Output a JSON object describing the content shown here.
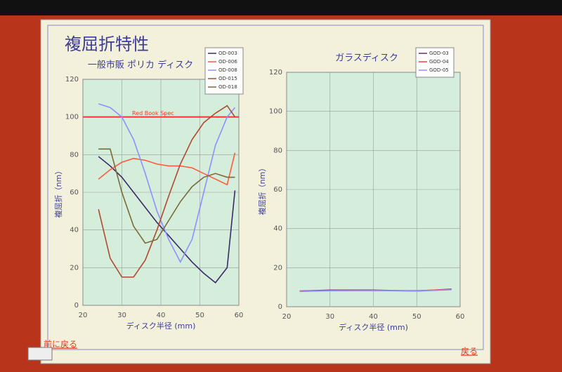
{
  "slide": {
    "title": "複屈折特性",
    "prev_link": "前に戻る",
    "back_link": "戻る"
  },
  "chart_data": [
    {
      "type": "line",
      "title": "一般市販 ポリカ ディスク",
      "x_label": "ディスク半径 (mm)",
      "y_label": "複屈折（nm）",
      "x": [
        24,
        27,
        30,
        33,
        36,
        39,
        42,
        45,
        48,
        51,
        54,
        57,
        59
      ],
      "series": [
        {
          "name": "OD-003",
          "color": "#3a2a6a",
          "values": [
            79,
            74,
            68,
            60,
            52,
            44,
            37,
            30,
            23,
            17,
            12,
            20,
            61
          ]
        },
        {
          "name": "OD-006",
          "color": "#ff5a3c",
          "values": [
            67,
            72,
            76,
            78,
            77,
            75,
            74,
            74,
            73,
            70,
            67,
            64,
            81
          ]
        },
        {
          "name": "OD-008",
          "color": "#8f8fff",
          "values": [
            107,
            105,
            100,
            88,
            70,
            50,
            35,
            23,
            35,
            60,
            85,
            100,
            105
          ]
        },
        {
          "name": "OD-015",
          "color": "#b04a30",
          "values": [
            51,
            25,
            15,
            15,
            24,
            40,
            58,
            75,
            88,
            97,
            102,
            106,
            100
          ]
        },
        {
          "name": "OD-018",
          "color": "#7a6a3a",
          "values": [
            83,
            83,
            60,
            42,
            33,
            35,
            45,
            55,
            63,
            68,
            70,
            68,
            68
          ]
        }
      ],
      "reference_line": {
        "label": "Red Book Spec",
        "value": 100,
        "color": "#ff3030"
      },
      "xlim": [
        20,
        60
      ],
      "xticks": [
        20,
        30,
        40,
        50,
        60
      ],
      "ylim": [
        0,
        120
      ],
      "yticks": [
        0,
        20,
        40,
        60,
        80,
        100,
        120
      ],
      "grid": true
    },
    {
      "type": "line",
      "title": "ガラスディスク",
      "x_label": "ディスク半径 (mm)",
      "y_label": "複屈折（nm）",
      "x": [
        23,
        30,
        40,
        50,
        58
      ],
      "series": [
        {
          "name": "GOD-03",
          "color": "#6a2a6a",
          "values": [
            8,
            8.5,
            8.5,
            8,
            9
          ]
        },
        {
          "name": "GOD-04",
          "color": "#ff3a3a",
          "values": [
            8,
            8.3,
            8.3,
            8.2,
            8.8
          ]
        },
        {
          "name": "GOD-05",
          "color": "#8f8fff",
          "values": [
            7.8,
            8.2,
            8.3,
            8,
            8.7
          ]
        }
      ],
      "xlim": [
        20,
        60
      ],
      "xticks": [
        20,
        30,
        40,
        50,
        60
      ],
      "ylim": [
        0,
        120
      ],
      "yticks": [
        0,
        20,
        40,
        60,
        80,
        100,
        120
      ],
      "grid": true
    }
  ]
}
